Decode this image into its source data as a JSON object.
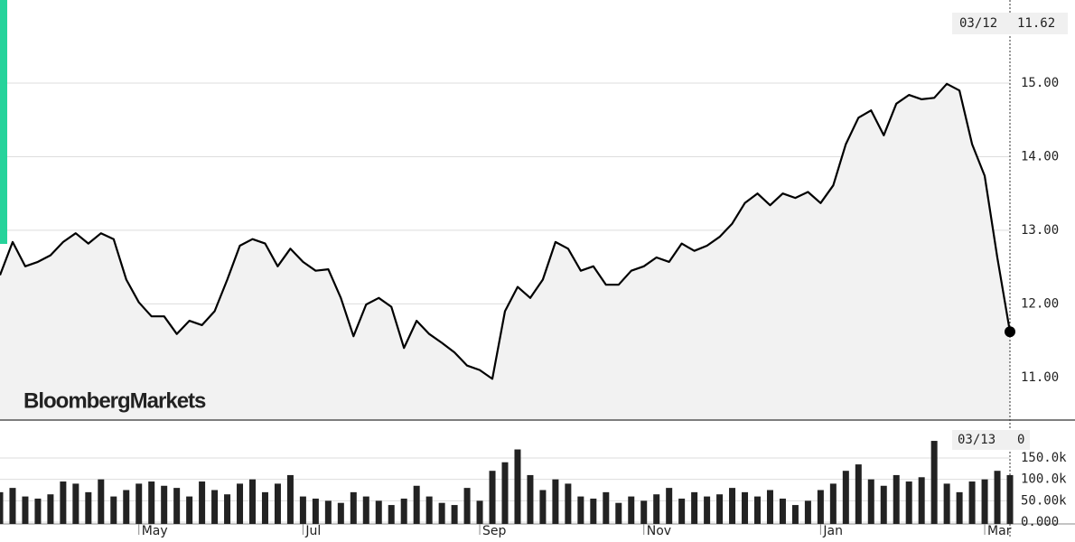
{
  "chart_data": [
    {
      "type": "line",
      "watermark": "BloombergMarkets",
      "color": "#000000",
      "last_price": {
        "date": "03/12",
        "label": "11.62"
      },
      "categories": [
        null,
        null,
        null,
        null,
        null,
        null,
        null,
        null,
        null,
        null,
        null,
        "May",
        null,
        null,
        null,
        null,
        null,
        null,
        null,
        null,
        null,
        null,
        null,
        null,
        "Jul",
        null,
        null,
        null,
        null,
        null,
        null,
        null,
        null,
        null,
        null,
        null,
        null,
        null,
        "Sep",
        null,
        null,
        null,
        null,
        null,
        null,
        null,
        null,
        null,
        null,
        null,
        null,
        "Nov",
        null,
        null,
        null,
        null,
        null,
        null,
        null,
        null,
        null,
        null,
        null,
        null,
        null,
        "Jan",
        null,
        null,
        null,
        null,
        null,
        null,
        null,
        null,
        null,
        null,
        null,
        null,
        "Mar",
        null,
        null
      ],
      "values": [
        12.39,
        12.84,
        12.51,
        12.57,
        12.66,
        12.84,
        12.96,
        12.82,
        12.96,
        12.88,
        12.33,
        12.02,
        11.83,
        11.83,
        11.59,
        11.77,
        11.71,
        11.9,
        12.33,
        12.79,
        12.88,
        12.82,
        12.51,
        12.75,
        12.57,
        12.45,
        12.47,
        12.08,
        11.56,
        11.99,
        12.08,
        11.96,
        11.4,
        11.77,
        11.59,
        11.47,
        11.34,
        11.16,
        11.1,
        10.98,
        11.9,
        12.23,
        12.08,
        12.33,
        12.84,
        12.75,
        12.45,
        12.51,
        12.26,
        12.26,
        12.45,
        12.51,
        12.63,
        12.57,
        12.82,
        12.72,
        12.79,
        12.91,
        13.09,
        13.37,
        13.5,
        13.34,
        13.5,
        13.44,
        13.52,
        13.37,
        13.61,
        14.17,
        14.53,
        14.63,
        14.29,
        14.72,
        14.84,
        14.78,
        14.8,
        14.99,
        14.9,
        14.17,
        13.74,
        12.63,
        11.62
      ],
      "ylim": [
        10.42,
        16.13
      ],
      "yticks": [
        {
          "value": 11,
          "label": "11.00"
        },
        {
          "value": 12,
          "label": "12.00"
        },
        {
          "value": 13,
          "label": "13.00"
        },
        {
          "value": 14,
          "label": "14.00"
        },
        {
          "value": 15,
          "label": "15.00"
        }
      ],
      "grid": true
    },
    {
      "type": "bar",
      "color": "#222222",
      "last_volume": {
        "date": "03/13",
        "label": "0"
      },
      "values": [
        70000,
        80000,
        60000,
        55000,
        65000,
        95000,
        90000,
        70000,
        100000,
        60000,
        75000,
        90000,
        95000,
        85000,
        80000,
        60000,
        95000,
        75000,
        65000,
        90000,
        100000,
        70000,
        90000,
        110000,
        60000,
        55000,
        50000,
        45000,
        70000,
        60000,
        50000,
        40000,
        55000,
        85000,
        60000,
        45000,
        40000,
        80000,
        50000,
        120000,
        140000,
        170000,
        110000,
        75000,
        100000,
        90000,
        60000,
        55000,
        70000,
        45000,
        60000,
        50000,
        65000,
        80000,
        55000,
        70000,
        60000,
        65000,
        80000,
        70000,
        60000,
        75000,
        55000,
        40000,
        50000,
        75000,
        90000,
        120000,
        135000,
        100000,
        85000,
        110000,
        95000,
        105000,
        190000,
        90000,
        70000,
        95000,
        100000,
        120000,
        110000
      ],
      "ylim": [
        0,
        236600
      ],
      "yticks": [
        {
          "value": 0,
          "label": "0.000"
        },
        {
          "value": 50000,
          "label": "50.00k"
        },
        {
          "value": 100000,
          "label": "100.0k"
        },
        {
          "value": 150000,
          "label": "150.0k"
        }
      ]
    }
  ]
}
